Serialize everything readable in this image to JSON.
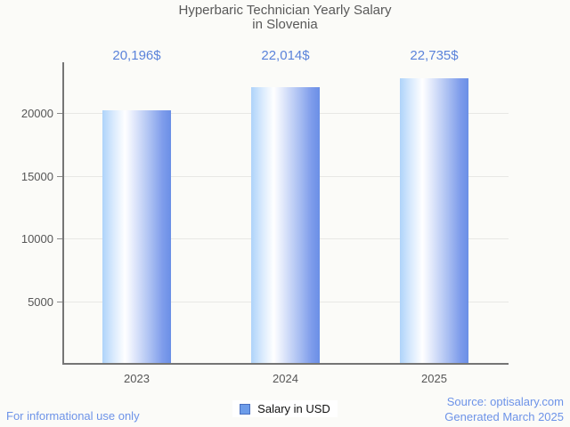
{
  "title": {
    "line1": "Hyperbaric Technician Yearly Salary",
    "line2": "in Slovenia"
  },
  "chart_data": {
    "type": "bar",
    "categories": [
      "2023",
      "2024",
      "2025"
    ],
    "values": [
      20196,
      22014,
      22735
    ],
    "value_labels": [
      "20,196$",
      "22,014$",
      "22,735$"
    ],
    "title": "Hyperbaric Technician Yearly Salary in Slovenia",
    "xlabel": "",
    "ylabel": "",
    "ylim": [
      0,
      24000
    ],
    "yticks": [
      5000,
      10000,
      15000,
      20000
    ],
    "grid": "horizontal",
    "legend_position": "bottom-center",
    "series_name": "Salary in USD"
  },
  "legend": {
    "label": "Salary in USD"
  },
  "footer": {
    "left": "For informational use only",
    "source": "Source: optisalary.com",
    "generated": "Generated March 2025"
  },
  "colors": {
    "background": "#fbfbf8",
    "title_text": "#595959",
    "axis": "#757575",
    "gridline": "#e8e8e5",
    "tick_text": "#565656",
    "value_label_text": "#5b83da",
    "footer_link_text": "#6d93e8",
    "bar_gradient_left": "#aed3fa",
    "bar_gradient_highlight": "#ffffff",
    "bar_gradient_right": "#6a8fe6",
    "legend_marker_fill": "#6d9ce9",
    "legend_marker_border": "#4a70c0"
  }
}
